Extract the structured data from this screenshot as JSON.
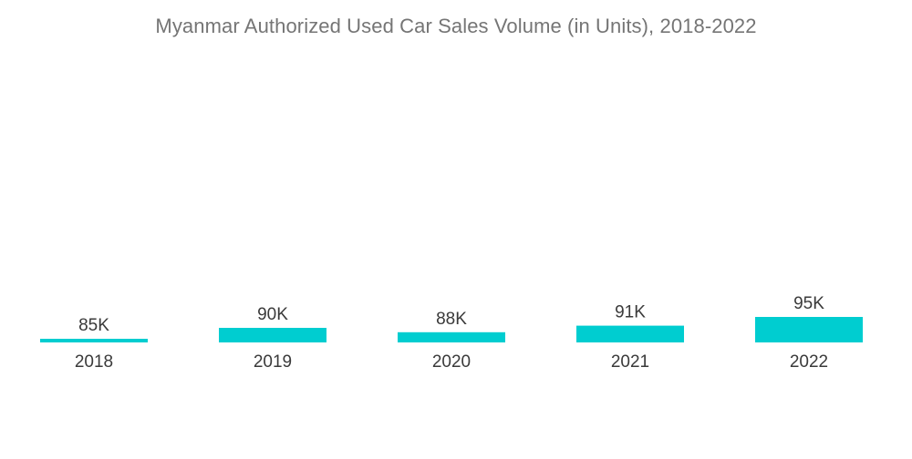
{
  "chart_data": {
    "type": "bar",
    "title": "Myanmar Authorized Used Car Sales Volume (in Units), 2018-2022",
    "categories": [
      "2018",
      "2019",
      "2020",
      "2021",
      "2022"
    ],
    "values": [
      85,
      90,
      88,
      91,
      95
    ],
    "value_labels": [
      "85K",
      "90K",
      "88K",
      "91K",
      "95K"
    ],
    "xlabel": "",
    "ylabel": "",
    "ylim": [
      0,
      100
    ],
    "grid": false,
    "legend": "none",
    "bar_color": "#00CDD0"
  }
}
